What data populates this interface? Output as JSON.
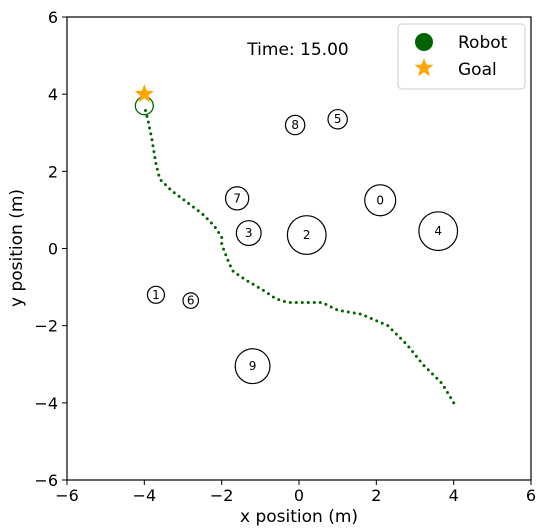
{
  "chart_data": {
    "type": "scatter",
    "xlabel": "x position (m)",
    "ylabel": "y position (m)",
    "xlim": [
      -6,
      6
    ],
    "ylim": [
      -6,
      6
    ],
    "xticks": [
      -6,
      -4,
      -2,
      0,
      2,
      4,
      6
    ],
    "yticks": [
      -6,
      -4,
      -2,
      0,
      2,
      4,
      6
    ],
    "xtick_labels": [
      "−6",
      "−4",
      "−2",
      "0",
      "2",
      "4",
      "6"
    ],
    "ytick_labels": [
      "−6",
      "−4",
      "−2",
      "0",
      "2",
      "4",
      "6"
    ],
    "annotation": "Time: 15.00",
    "grid": false,
    "legend_position": "top-right",
    "legend": [
      {
        "label": "Robot",
        "marker": "circle",
        "color": "#006400"
      },
      {
        "label": "Goal",
        "marker": "star",
        "color": "#FFA500"
      }
    ],
    "robot": {
      "x": -4.0,
      "y": 3.7,
      "radius": 0.18,
      "color": "#006400"
    },
    "goal": {
      "x": -4.0,
      "y": 4.0,
      "color": "#FFA500"
    },
    "trajectory": {
      "color": "#006400",
      "style": "dotted",
      "points": [
        [
          4.0,
          -4.0
        ],
        [
          3.7,
          -3.5
        ],
        [
          3.2,
          -3.0
        ],
        [
          2.8,
          -2.5
        ],
        [
          2.3,
          -2.0
        ],
        [
          1.6,
          -1.7
        ],
        [
          1.0,
          -1.6
        ],
        [
          0.6,
          -1.4
        ],
        [
          0.1,
          -1.4
        ],
        [
          -0.3,
          -1.4
        ],
        [
          -0.6,
          -1.3
        ],
        [
          -0.9,
          -1.1
        ],
        [
          -1.4,
          -0.8
        ],
        [
          -1.7,
          -0.6
        ],
        [
          -1.8,
          -0.4
        ],
        [
          -2.0,
          0.1
        ],
        [
          -2.0,
          0.3
        ],
        [
          -2.2,
          0.6
        ],
        [
          -2.5,
          0.9
        ],
        [
          -2.9,
          1.2
        ],
        [
          -3.3,
          1.5
        ],
        [
          -3.6,
          1.8
        ],
        [
          -3.7,
          2.2
        ],
        [
          -3.8,
          2.8
        ],
        [
          -3.9,
          3.3
        ],
        [
          -4.0,
          3.7
        ]
      ]
    },
    "humans": [
      {
        "label": "0",
        "x": 2.1,
        "y": 1.25,
        "r": 0.4
      },
      {
        "label": "1",
        "x": -3.7,
        "y": -1.2,
        "r": 0.22
      },
      {
        "label": "2",
        "x": 0.2,
        "y": 0.35,
        "r": 0.5
      },
      {
        "label": "3",
        "x": -1.3,
        "y": 0.4,
        "r": 0.32
      },
      {
        "label": "4",
        "x": 3.6,
        "y": 0.45,
        "r": 0.5
      },
      {
        "label": "5",
        "x": 1.0,
        "y": 3.35,
        "r": 0.25
      },
      {
        "label": "6",
        "x": -2.8,
        "y": -1.35,
        "r": 0.2
      },
      {
        "label": "7",
        "x": -1.6,
        "y": 1.3,
        "r": 0.3
      },
      {
        "label": "8",
        "x": -0.1,
        "y": 3.2,
        "r": 0.25
      },
      {
        "label": "9",
        "x": -1.2,
        "y": -3.05,
        "r": 0.45
      }
    ]
  }
}
